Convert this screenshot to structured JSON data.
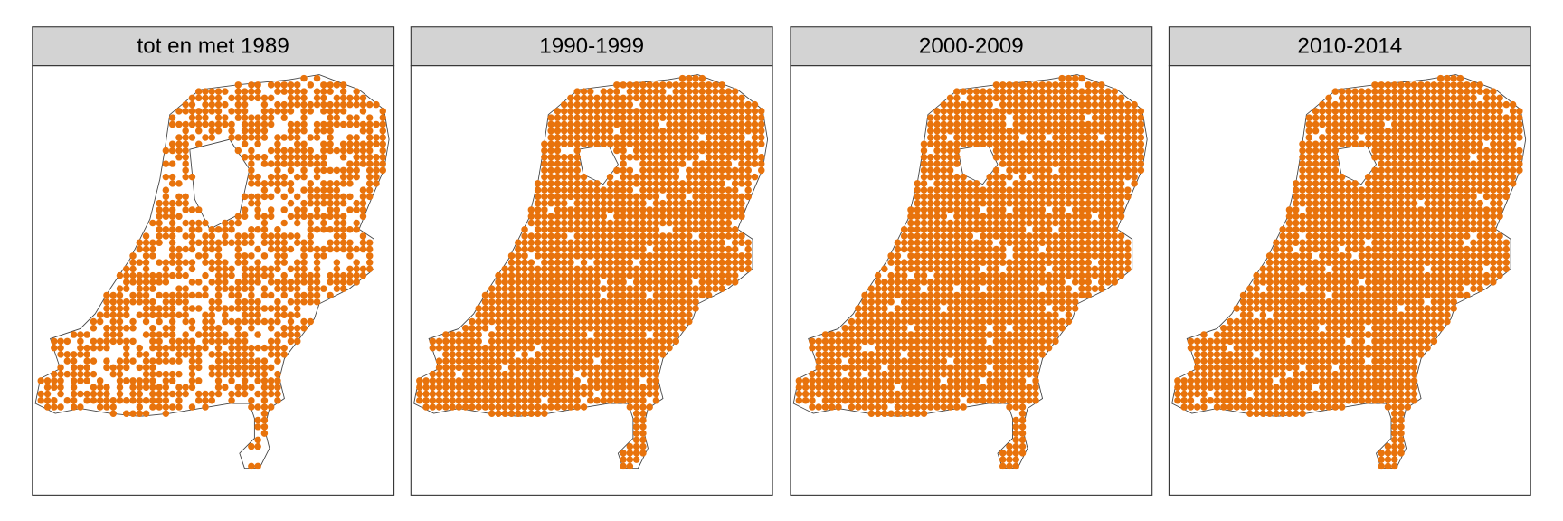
{
  "panels": [
    {
      "title": "tot en met 1989"
    },
    {
      "title": "1990-1999"
    },
    {
      "title": "2000-2009"
    },
    {
      "title": "2010-2014"
    }
  ]
}
